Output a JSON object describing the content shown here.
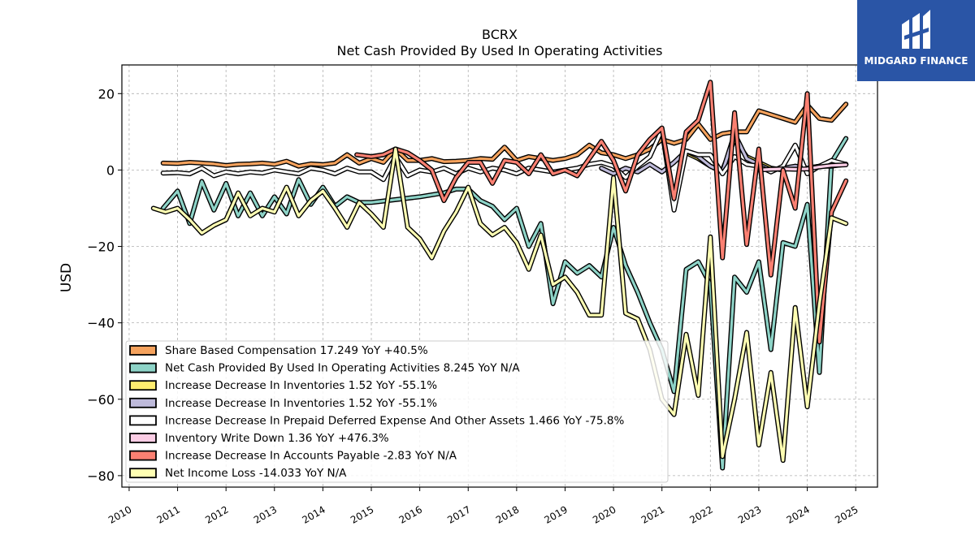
{
  "brand": {
    "name": "MIDGARD FINANCE"
  },
  "chart_data": {
    "type": "line",
    "title": "BCRX",
    "subtitle": "Net Cash Provided By Used In Operating Activities",
    "ylabel": "USD",
    "xlabel": "",
    "xlim": [
      2009.85,
      2025.45
    ],
    "ylim": [
      -83,
      27.5
    ],
    "yticks": [
      20,
      0,
      -20,
      -40,
      -60,
      -80
    ],
    "xticks": [
      "2010",
      "2011",
      "2012",
      "2013",
      "2014",
      "2015",
      "2016",
      "2017",
      "2018",
      "2019",
      "2020",
      "2021",
      "2022",
      "2023",
      "2024",
      "2025"
    ],
    "grid": true,
    "legend_position": "lower-left",
    "series": [
      {
        "name": "Share Based Compensation",
        "legend": "Share Based Compensation  17.249 YoY +40.5%",
        "color": "#f5a25d",
        "x": [
          2010.7,
          2011.0,
          2011.25,
          2011.5,
          2011.75,
          2012.0,
          2012.25,
          2012.5,
          2012.75,
          2013.0,
          2013.25,
          2013.5,
          2013.75,
          2014.0,
          2014.25,
          2014.5,
          2014.75,
          2015.0,
          2015.25,
          2015.5,
          2015.75,
          2016.0,
          2016.25,
          2016.5,
          2016.75,
          2017.0,
          2017.25,
          2017.5,
          2017.75,
          2018.0,
          2018.25,
          2018.5,
          2018.75,
          2019.0,
          2019.25,
          2019.5,
          2019.75,
          2020.0,
          2020.25,
          2020.5,
          2020.75,
          2021.0,
          2021.25,
          2021.5,
          2021.75,
          2022.0,
          2022.25,
          2022.5,
          2022.75,
          2023.0,
          2023.25,
          2023.5,
          2023.75,
          2024.0,
          2024.25,
          2024.5,
          2024.8
        ],
        "y": [
          1.8,
          1.7,
          2.0,
          1.8,
          1.6,
          1.2,
          1.5,
          1.6,
          1.8,
          1.5,
          2.3,
          1.0,
          1.6,
          1.4,
          1.8,
          4.0,
          1.8,
          3.0,
          2.0,
          5.5,
          2.5,
          2.5,
          3.0,
          2.2,
          2.3,
          2.5,
          3.0,
          2.8,
          6.0,
          2.5,
          3.5,
          3.0,
          2.5,
          3.0,
          4.0,
          6.5,
          4.5,
          4.0,
          3.0,
          4.0,
          5.5,
          8.0,
          7.0,
          8.0,
          12.0,
          8.0,
          9.5,
          10.0,
          10.0,
          15.5,
          14.5,
          13.5,
          12.5,
          17.0,
          13.5,
          13.0,
          17.249
        ]
      },
      {
        "name": "Net Cash Provided By Used In Operating Activities",
        "legend": "Net Cash Provided By Used In Operating Activities  8.245 YoY N/A",
        "color": "#8dd3c7",
        "x": [
          2010.7,
          2011.0,
          2011.25,
          2011.5,
          2011.75,
          2012.0,
          2012.25,
          2012.5,
          2012.75,
          2013.0,
          2013.25,
          2013.5,
          2013.75,
          2014.0,
          2014.25,
          2014.5,
          2014.75,
          2015.0,
          2016.0,
          2016.5,
          2016.75,
          2017.0,
          2017.25,
          2017.5,
          2017.75,
          2018.0,
          2018.25,
          2018.5,
          2018.75,
          2019.0,
          2019.25,
          2019.5,
          2019.75,
          2020.0,
          2020.25,
          2020.5,
          2020.75,
          2021.0,
          2021.25,
          2021.5,
          2021.75,
          2022.0,
          2022.25,
          2022.5,
          2022.75,
          2023.0,
          2023.25,
          2023.5,
          2023.75,
          2024.0,
          2024.25,
          2024.5,
          2024.8
        ],
        "y": [
          -10,
          -5.5,
          -14,
          -3,
          -10.5,
          -3.5,
          -12,
          -6,
          -12,
          -7,
          -11.5,
          -2.5,
          -9,
          -4.5,
          -9.5,
          -7,
          -8.5,
          -8.5,
          -7,
          -6,
          -5,
          -5,
          -8,
          -9.5,
          -13,
          -10,
          -20,
          -14,
          -35,
          -24,
          -27,
          -25,
          -28,
          -15,
          -25,
          -32,
          -40,
          -47,
          -58,
          -26,
          -24,
          -30,
          -78,
          -28,
          -32,
          -24,
          -47,
          -19,
          -20,
          -9,
          -53,
          2,
          8.245
        ]
      },
      {
        "name": "Increase Decrease In Inventories",
        "legend": "Increase Decrease In Inventories  1.52 YoY -55.1%",
        "color": "#ffed6f",
        "x": [
          2021.5,
          2021.75,
          2022.0,
          2022.25,
          2022.5,
          2022.75,
          2023.0,
          2023.25,
          2023.5,
          2023.75,
          2024.0,
          2024.25,
          2024.5,
          2024.8
        ],
        "y": [
          4.5,
          3.0,
          1.0,
          0.0,
          8.0,
          3.5,
          2.0,
          0.5,
          0.0,
          1.0,
          0.5,
          1.0,
          1.5,
          1.52
        ]
      },
      {
        "name": "Increase Decrease In Inventories",
        "legend": "Increase Decrease In Inventories  1.52 YoY -55.1%",
        "color": "#bebada",
        "x": [
          2019.75,
          2020.0,
          2020.25,
          2020.5,
          2020.75,
          2021.0,
          2021.25,
          2021.5,
          2021.75,
          2022.0,
          2022.25,
          2022.5,
          2022.75,
          2023.0,
          2023.25,
          2023.5,
          2023.75,
          2024.0,
          2024.25,
          2024.5,
          2024.8
        ],
        "y": [
          0.5,
          -1.0,
          0.5,
          -0.5,
          1.5,
          -0.5,
          2.0,
          5.0,
          3.5,
          1.0,
          -0.5,
          9.5,
          3.0,
          1.5,
          0.0,
          0.5,
          1.0,
          0.5,
          1.0,
          1.0,
          1.52
        ]
      },
      {
        "name": "Increase Decrease In Prepaid Deferred Expense And Other Assets",
        "legend": "Increase Decrease In Prepaid Deferred Expense And Other Assets  1.466 YoY -75.8%",
        "color": "#ffffff",
        "x": [
          2010.7,
          2011.0,
          2011.25,
          2011.5,
          2011.75,
          2012.0,
          2012.25,
          2012.5,
          2012.75,
          2013.0,
          2013.25,
          2013.5,
          2013.75,
          2014.0,
          2014.25,
          2014.5,
          2014.75,
          2015.0,
          2015.25,
          2015.5,
          2015.75,
          2016.0,
          2016.25,
          2016.5,
          2016.75,
          2017.0,
          2017.25,
          2017.5,
          2017.75,
          2018.0,
          2018.25,
          2018.5,
          2018.75,
          2019.0,
          2019.25,
          2019.5,
          2019.75,
          2020.0,
          2020.25,
          2020.5,
          2020.75,
          2021.0,
          2021.25,
          2021.5,
          2021.75,
          2022.0,
          2022.25,
          2022.5,
          2022.75,
          2023.0,
          2023.25,
          2023.5,
          2023.75,
          2024.0,
          2024.25,
          2024.5,
          2024.8
        ],
        "y": [
          -0.8,
          -0.7,
          -1.0,
          0.5,
          -1.5,
          -0.5,
          -1.0,
          -0.5,
          -0.8,
          0.0,
          -0.5,
          -1.0,
          0.5,
          0.0,
          -1.0,
          0.5,
          -0.5,
          -0.5,
          -2.5,
          3.5,
          -1.5,
          0.0,
          -0.5,
          0.5,
          -1.0,
          0.5,
          -0.5,
          0.5,
          0.0,
          -1.0,
          0.5,
          0.0,
          -0.5,
          0.0,
          0.5,
          1.5,
          2.0,
          1.0,
          -2.0,
          1.0,
          3.5,
          10.5,
          -10.5,
          5.0,
          4.0,
          4.0,
          -1.0,
          3.5,
          1.5,
          1.0,
          -0.5,
          1.0,
          6.5,
          -1.0,
          1.0,
          2.5,
          1.466
        ]
      },
      {
        "name": "Inventory Write Down",
        "legend": "Inventory Write Down  1.36 YoY +476.3%",
        "color": "#fccde5",
        "x": [
          2023.0,
          2023.25,
          2023.5,
          2023.75,
          2024.0,
          2024.25,
          2024.5,
          2024.8
        ],
        "y": [
          0.0,
          0.2,
          0.3,
          0.2,
          0.3,
          0.8,
          1.2,
          1.36
        ]
      },
      {
        "name": "Increase Decrease In Accounts Payable",
        "legend": "Increase Decrease In Accounts Payable  -2.83 YoY N/A",
        "color": "#fb8072",
        "x": [
          2014.7,
          2015.0,
          2015.25,
          2015.5,
          2015.75,
          2016.0,
          2016.25,
          2016.5,
          2016.75,
          2017.0,
          2017.25,
          2017.5,
          2017.75,
          2018.0,
          2018.25,
          2018.5,
          2018.75,
          2019.0,
          2019.25,
          2019.5,
          2019.75,
          2020.0,
          2020.25,
          2020.5,
          2020.75,
          2021.0,
          2021.25,
          2021.5,
          2021.75,
          2022.0,
          2022.25,
          2022.5,
          2022.75,
          2023.0,
          2023.25,
          2023.5,
          2023.75,
          2024.0,
          2024.25,
          2024.5,
          2024.8
        ],
        "y": [
          4.0,
          3.5,
          4.0,
          5.5,
          4.5,
          2.5,
          0.0,
          -8.0,
          -2.0,
          2.0,
          2.0,
          -3.5,
          2.5,
          2.0,
          -1.0,
          4.0,
          -1.0,
          0.0,
          -1.5,
          3.0,
          7.5,
          2.5,
          -5.5,
          4.0,
          8.0,
          11.0,
          -7.5,
          10.0,
          13.0,
          23.0,
          -23.0,
          15.0,
          -19.5,
          5.5,
          -27.5,
          0.0,
          -10.0,
          20.0,
          -45.0,
          -11.0,
          -2.83
        ]
      },
      {
        "name": "Net Income Loss",
        "legend": "Net Income Loss  -14.033 YoY N/A",
        "color": "#ffffb3",
        "x": [
          2010.5,
          2010.75,
          2011.0,
          2011.25,
          2011.5,
          2011.75,
          2012.0,
          2012.25,
          2012.5,
          2012.75,
          2013.0,
          2013.25,
          2013.5,
          2013.75,
          2014.0,
          2014.25,
          2014.5,
          2014.75,
          2015.0,
          2015.25,
          2015.5,
          2015.75,
          2016.0,
          2016.25,
          2016.5,
          2016.75,
          2017.0,
          2017.25,
          2017.5,
          2017.75,
          2018.0,
          2018.25,
          2018.5,
          2018.75,
          2019.0,
          2019.25,
          2019.5,
          2019.75,
          2020.0,
          2020.25,
          2020.5,
          2020.75,
          2021.0,
          2021.25,
          2021.5,
          2021.75,
          2022.0,
          2022.25,
          2022.5,
          2022.75,
          2023.0,
          2023.25,
          2023.5,
          2023.75,
          2024.0,
          2024.25,
          2024.5,
          2024.8
        ],
        "y": [
          -10.0,
          -11.0,
          -10.0,
          -13.0,
          -16.5,
          -14.5,
          -13.0,
          -6.0,
          -12.0,
          -10.0,
          -11.0,
          -4.5,
          -12.0,
          -8.0,
          -5.5,
          -10.0,
          -15.0,
          -8.5,
          -11.5,
          -15.0,
          5.5,
          -15.0,
          -18.0,
          -23.0,
          -16.0,
          -11.0,
          -4.5,
          -14.0,
          -17.0,
          -15.0,
          -19.0,
          -26.0,
          -17.0,
          -30.0,
          -28.0,
          -32.0,
          -38.0,
          -38.0,
          -2.0,
          -37.5,
          -39.0,
          -47.0,
          -60.0,
          -64.0,
          -43.0,
          -59.0,
          -17.5,
          -75.0,
          -60.0,
          -42.5,
          -72.0,
          -53.0,
          -76.0,
          -36.0,
          -62.0,
          -35.0,
          -12.5,
          -14.033
        ]
      }
    ]
  }
}
